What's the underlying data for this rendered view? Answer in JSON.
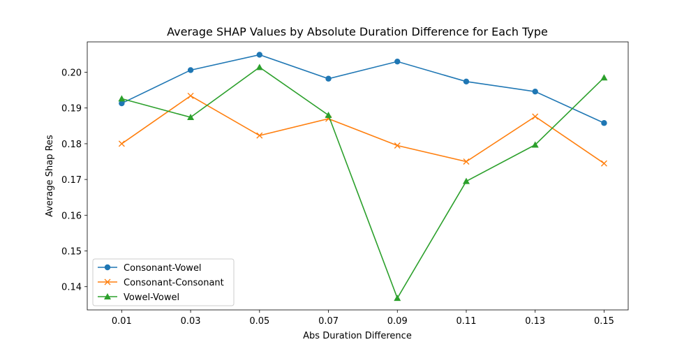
{
  "chart_data": {
    "type": "line",
    "title": "Average SHAP Values by Absolute Duration Difference for Each Type",
    "xlabel": "Abs Duration Difference",
    "ylabel": "Average Shap Res",
    "x": [
      0.01,
      0.03,
      0.05,
      0.07,
      0.09,
      0.11,
      0.13,
      0.15
    ],
    "x_tick_labels": [
      "0.01",
      "0.03",
      "0.05",
      "0.07",
      "0.09",
      "0.11",
      "0.13",
      "0.15"
    ],
    "xlim": [
      0.0,
      0.157
    ],
    "ylim": [
      0.1335,
      0.2085
    ],
    "y_ticks": [
      0.14,
      0.15,
      0.16,
      0.17,
      0.18,
      0.19,
      0.2
    ],
    "y_tick_labels": [
      "0.14",
      "0.15",
      "0.16",
      "0.17",
      "0.18",
      "0.19",
      "0.20"
    ],
    "grid": false,
    "legend_position": "lower-left",
    "series": [
      {
        "name": "Consonant-Vowel",
        "marker": "circle",
        "color": "#1f77b4",
        "values": [
          0.1913,
          0.2006,
          0.2049,
          0.1982,
          0.203,
          0.1974,
          0.1946,
          0.1858
        ]
      },
      {
        "name": "Consonant-Consonant",
        "marker": "x",
        "color": "#ff7f0e",
        "values": [
          0.18,
          0.1934,
          0.1823,
          0.187,
          0.1795,
          0.175,
          0.1876,
          0.1745
        ]
      },
      {
        "name": "Vowel-Vowel",
        "marker": "triangle",
        "color": "#2ca02c",
        "values": [
          0.1926,
          0.1874,
          0.2014,
          0.188,
          0.1368,
          0.1695,
          0.1797,
          0.1985
        ]
      }
    ]
  }
}
